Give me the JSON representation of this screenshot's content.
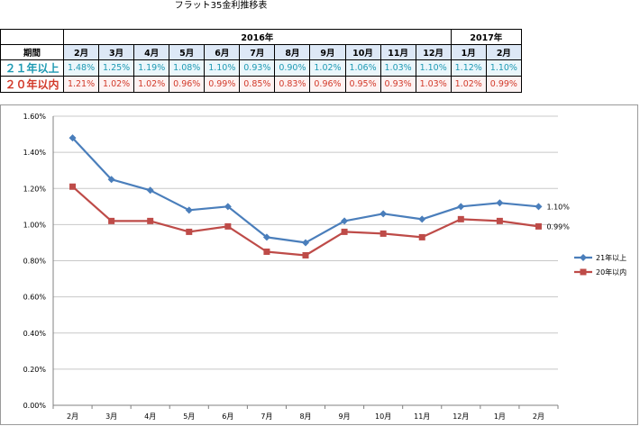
{
  "page_title": "フラット35金利推移表",
  "table": {
    "header_label": "期間",
    "years": [
      {
        "label": "2016年",
        "span": 11
      },
      {
        "label": "2017年",
        "span": 2
      }
    ],
    "months": [
      "2月",
      "3月",
      "4月",
      "5月",
      "6月",
      "7月",
      "8月",
      "9月",
      "10月",
      "11月",
      "12月",
      "1月",
      "2月"
    ],
    "rows": [
      {
        "label": "２１年以上",
        "values": [
          "1.48%",
          "1.25%",
          "1.19%",
          "1.08%",
          "1.10%",
          "0.93%",
          "0.90%",
          "1.02%",
          "1.06%",
          "1.03%",
          "1.10%",
          "1.12%",
          "1.10%"
        ]
      },
      {
        "label": "２０年以内",
        "values": [
          "1.21%",
          "1.02%",
          "1.02%",
          "0.96%",
          "0.99%",
          "0.85%",
          "0.83%",
          "0.96%",
          "0.95%",
          "0.93%",
          "1.03%",
          "1.02%",
          "0.99%"
        ]
      }
    ]
  },
  "chart_data": {
    "type": "line",
    "categories": [
      "2月",
      "3月",
      "4月",
      "5月",
      "6月",
      "7月",
      "8月",
      "9月",
      "10月",
      "11月",
      "12月",
      "1月",
      "2月"
    ],
    "series": [
      {
        "name": "21年以上",
        "values": [
          1.48,
          1.25,
          1.19,
          1.08,
          1.1,
          0.93,
          0.9,
          1.02,
          1.06,
          1.03,
          1.1,
          1.12,
          1.1
        ],
        "color": "#4a7ebb",
        "marker": "diamond",
        "end_label": "1.10%"
      },
      {
        "name": "20年以内",
        "values": [
          1.21,
          1.02,
          1.02,
          0.96,
          0.99,
          0.85,
          0.83,
          0.96,
          0.95,
          0.93,
          1.03,
          1.02,
          0.99
        ],
        "color": "#be4b48",
        "marker": "square",
        "end_label": "0.99%"
      }
    ],
    "ylim": [
      0,
      1.6
    ],
    "yticks": [
      "0.00%",
      "0.20%",
      "0.40%",
      "0.60%",
      "0.80%",
      "1.00%",
      "1.20%",
      "1.40%",
      "1.60%"
    ],
    "grid": "horizontal",
    "legend_position": "right"
  }
}
